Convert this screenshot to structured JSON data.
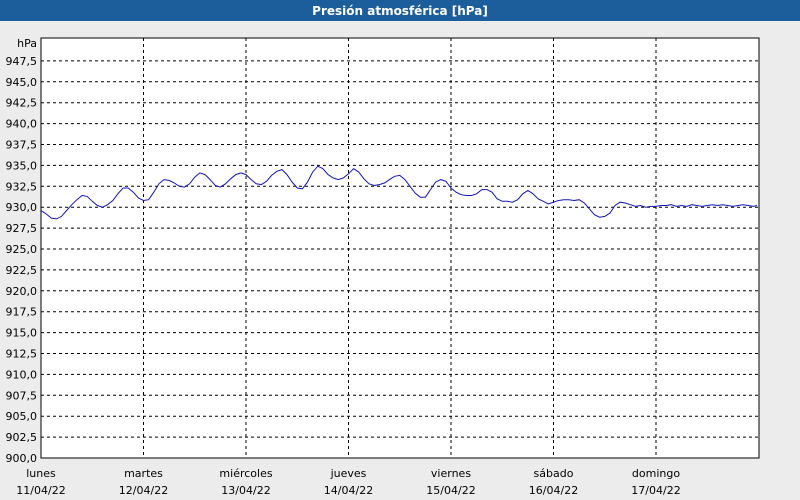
{
  "title": "Presión atmosférica [hPa]",
  "colors": {
    "title_bg": "#1b5e9b",
    "line": "#1414b4",
    "plot_bg": "#ffffff",
    "grid": "#000000"
  },
  "chart_data": {
    "type": "line",
    "title": "Presión atmosférica [hPa]",
    "unit_label": "hPa",
    "ylim": [
      900,
      950
    ],
    "y_ticks": [
      "947,5",
      "945,0",
      "942,5",
      "940,0",
      "937,5",
      "935,0",
      "932,5",
      "930,0",
      "927,5",
      "925,0",
      "922,5",
      "920,0",
      "917,5",
      "915,0",
      "912,5",
      "910,0",
      "907,5",
      "905,0",
      "902,5",
      "900,0"
    ],
    "y_tick_values": [
      947.5,
      945,
      942.5,
      940,
      937.5,
      935,
      932.5,
      930,
      927.5,
      925,
      922.5,
      920,
      917.5,
      915,
      912.5,
      910,
      907.5,
      905,
      902.5,
      900
    ],
    "xlim": [
      0,
      7
    ],
    "x_ticks": [
      {
        "day": "lunes",
        "date": "11/04/22"
      },
      {
        "day": "martes",
        "date": "12/04/22"
      },
      {
        "day": "miércoles",
        "date": "13/04/22"
      },
      {
        "day": "jueves",
        "date": "14/04/22"
      },
      {
        "day": "viernes",
        "date": "15/04/22"
      },
      {
        "day": "sábado",
        "date": "16/04/22"
      },
      {
        "day": "domingo",
        "date": "17/04/22"
      }
    ],
    "grid": true,
    "series": [
      {
        "x": [
          0,
          0.05,
          0.1,
          0.15,
          0.2,
          0.25,
          0.3,
          0.35,
          0.4,
          0.45,
          0.5,
          0.55,
          0.6,
          0.65,
          0.7,
          0.75,
          0.8,
          0.85,
          0.9,
          0.95,
          1.0,
          1.05,
          1.1,
          1.15,
          1.2,
          1.25,
          1.3,
          1.35,
          1.4,
          1.45,
          1.5,
          1.55,
          1.6,
          1.65,
          1.7,
          1.75,
          1.8,
          1.85,
          1.9,
          1.95,
          2.0,
          2.05,
          2.1,
          2.15,
          2.2,
          2.25,
          2.3,
          2.35,
          2.4,
          2.45,
          2.5,
          2.55,
          2.6,
          2.65,
          2.7,
          2.75,
          2.8,
          2.85,
          2.9,
          2.95,
          3.0,
          3.05,
          3.1,
          3.15,
          3.2,
          3.25,
          3.3,
          3.35,
          3.4,
          3.45,
          3.5,
          3.55,
          3.6,
          3.65,
          3.7,
          3.75,
          3.8,
          3.85,
          3.9,
          3.95,
          4.0,
          4.05,
          4.1,
          4.15,
          4.2,
          4.25,
          4.3,
          4.35,
          4.4,
          4.45,
          4.5,
          4.55,
          4.6,
          4.65,
          4.7,
          4.75,
          4.8,
          4.85,
          4.9,
          4.95,
          5.0,
          5.05,
          5.1,
          5.15,
          5.2,
          5.25,
          5.3,
          5.35,
          5.4,
          5.45,
          5.5,
          5.55,
          5.6,
          5.65,
          5.7,
          5.75,
          5.8,
          5.85,
          5.9,
          5.95,
          6.0,
          6.05,
          6.1,
          6.15,
          6.2,
          6.25,
          6.3,
          6.35,
          6.4,
          6.45,
          6.5,
          6.55,
          6.6,
          6.65,
          6.7,
          6.75,
          6.8,
          6.85,
          6.9,
          6.95,
          7.0
        ],
        "values": [
          929.6,
          929.2,
          928.7,
          928.6,
          928.9,
          929.6,
          930.3,
          930.9,
          931.4,
          931.3,
          930.7,
          930.2,
          930.0,
          930.3,
          930.8,
          931.6,
          932.3,
          932.3,
          931.8,
          931.1,
          930.8,
          930.9,
          931.8,
          932.8,
          933.3,
          933.2,
          932.9,
          932.5,
          932.4,
          932.8,
          933.6,
          934.1,
          933.9,
          933.3,
          932.6,
          932.4,
          932.8,
          933.4,
          933.9,
          934.1,
          933.9,
          933.3,
          932.8,
          932.7,
          933.1,
          933.8,
          934.3,
          934.5,
          933.9,
          933.0,
          932.3,
          932.2,
          933.0,
          934.2,
          934.9,
          934.6,
          933.9,
          933.5,
          933.3,
          933.5,
          934.0,
          934.6,
          934.2,
          933.4,
          932.8,
          932.6,
          932.7,
          932.9,
          933.3,
          933.7,
          933.8,
          933.3,
          932.5,
          931.7,
          931.2,
          931.2,
          932.1,
          933.0,
          933.3,
          933.1,
          932.3,
          931.8,
          931.5,
          931.4,
          931.4,
          931.6,
          932.1,
          932.1,
          931.8,
          931.0,
          930.7,
          930.7,
          930.6,
          930.9,
          931.6,
          932.0,
          931.6,
          931.0,
          930.7,
          930.4,
          930.6,
          930.8,
          930.9,
          930.9,
          930.8,
          930.9,
          930.5,
          929.8,
          929.1,
          928.8,
          928.9,
          929.3,
          930.2,
          930.6,
          930.5,
          930.3,
          930.1,
          930.2,
          930.0,
          930.1,
          930.1,
          930.2,
          930.2,
          930.3,
          930.1,
          930.2,
          930.1,
          930.3,
          930.2,
          930.1,
          930.2,
          930.3,
          930.2,
          930.3,
          930.2,
          930.1,
          930.2,
          930.3,
          930.2,
          930.1,
          930.2
        ]
      }
    ]
  }
}
